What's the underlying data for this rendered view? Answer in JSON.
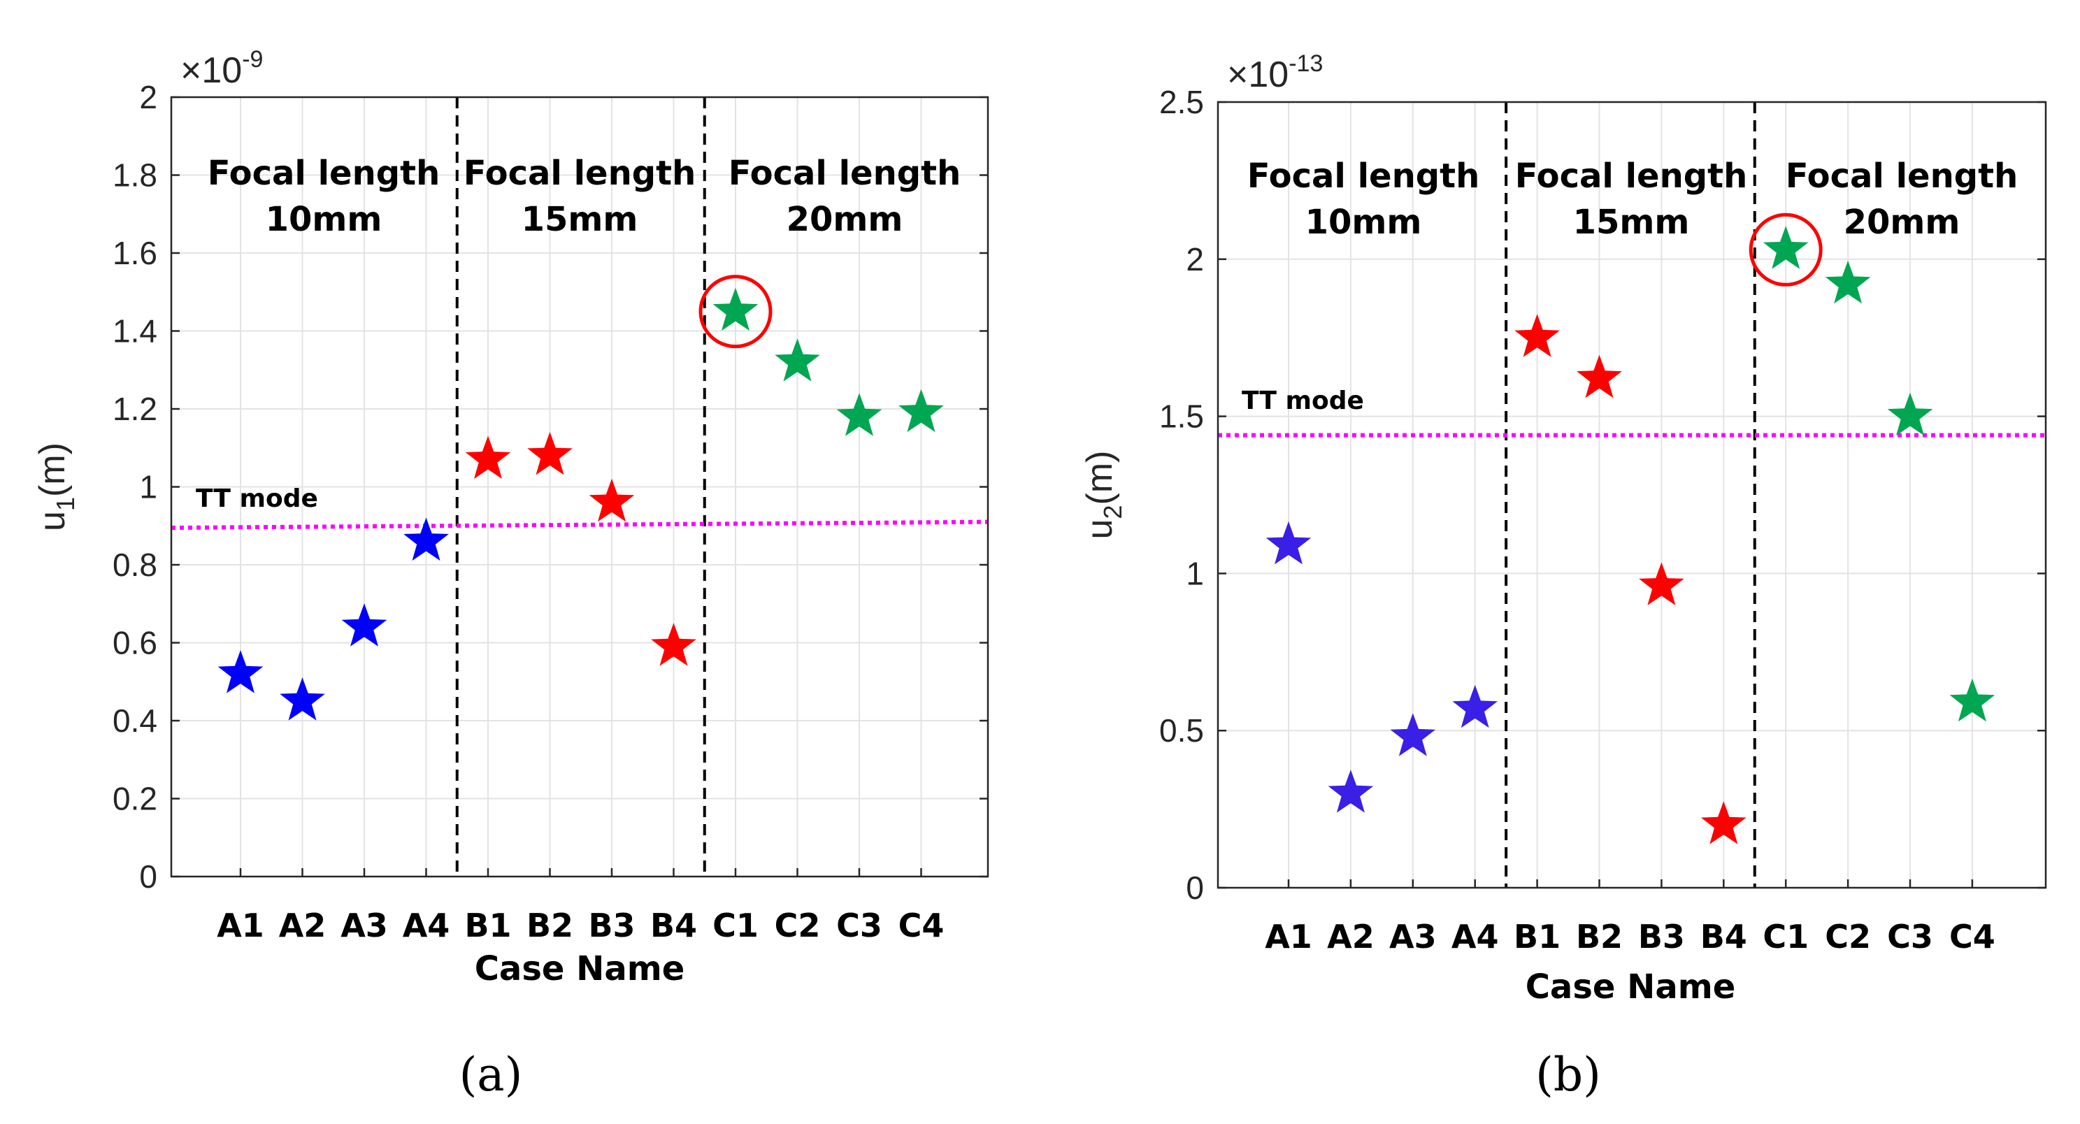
{
  "chart_data": [
    {
      "type": "scatter",
      "panel_label": "(a)",
      "exponent_label": {
        "base": "×10",
        "power": "-9"
      },
      "ylabel": {
        "main": "u",
        "sub": "1",
        "unit": "(m)"
      },
      "xlabel": "Case Name",
      "ylim": [
        0,
        2
      ],
      "yticks": [
        0,
        0.2,
        0.4,
        0.6,
        0.8,
        1,
        1.2,
        1.4,
        1.6,
        1.8,
        2
      ],
      "ytick_labels": [
        "0",
        "0.2",
        "0.4",
        "0.6",
        "0.8",
        "1",
        "1.2",
        "1.4",
        "1.6",
        "1.8",
        "2"
      ],
      "categories": [
        "A1",
        "A2",
        "A3",
        "A4",
        "B1",
        "B2",
        "B3",
        "B4",
        "C1",
        "C2",
        "C3",
        "C4"
      ],
      "series": [
        {
          "name": "Focal length 10mm",
          "color": "#0000ff",
          "categories": [
            "A1",
            "A2",
            "A3",
            "A4"
          ],
          "values": [
            0.52,
            0.45,
            0.64,
            0.86
          ]
        },
        {
          "name": "Focal length 15mm",
          "color": "#ff0000",
          "categories": [
            "B1",
            "B2",
            "B3",
            "B4"
          ],
          "values": [
            1.07,
            1.08,
            0.96,
            0.59
          ]
        },
        {
          "name": "Focal length 20mm",
          "color": "#00a651",
          "categories": [
            "C1",
            "C2",
            "C3",
            "C4"
          ],
          "values": [
            1.45,
            1.32,
            1.18,
            1.19
          ]
        }
      ],
      "groups": [
        {
          "line1": "Focal length",
          "line2": "10mm"
        },
        {
          "line1": "Focal length",
          "line2": "15mm"
        },
        {
          "line1": "Focal length",
          "line2": "20mm"
        }
      ],
      "reference": {
        "label": "TT mode",
        "start": 0.895,
        "end": 0.91,
        "color": "#ff00ff"
      },
      "highlight": "C1"
    },
    {
      "type": "scatter",
      "panel_label": "(b)",
      "exponent_label": {
        "base": "×10",
        "power": "-13"
      },
      "ylabel": {
        "main": "u",
        "sub": "2",
        "unit": "(m)"
      },
      "xlabel": "Case Name",
      "ylim": [
        0,
        2.5
      ],
      "yticks": [
        0,
        0.5,
        1,
        1.5,
        2,
        2.5
      ],
      "ytick_labels": [
        "0",
        "0.5",
        "1",
        "1.5",
        "2",
        "2.5"
      ],
      "categories": [
        "A1",
        "A2",
        "A3",
        "A4",
        "B1",
        "B2",
        "B3",
        "B4",
        "C1",
        "C2",
        "C3",
        "C4"
      ],
      "series": [
        {
          "name": "Focal length 10mm",
          "color": "#3a1fe6",
          "categories": [
            "A1",
            "A2",
            "A3",
            "A4"
          ],
          "values": [
            1.09,
            0.3,
            0.48,
            0.57
          ]
        },
        {
          "name": "Focal length 15mm",
          "color": "#ff0000",
          "categories": [
            "B1",
            "B2",
            "B3",
            "B4"
          ],
          "values": [
            1.75,
            1.62,
            0.96,
            0.2
          ]
        },
        {
          "name": "Focal length 20mm",
          "color": "#00a651",
          "categories": [
            "C1",
            "C2",
            "C3",
            "C4"
          ],
          "values": [
            2.03,
            1.92,
            1.5,
            0.59
          ]
        }
      ],
      "groups": [
        {
          "line1": "Focal length",
          "line2": "10mm"
        },
        {
          "line1": "Focal length",
          "line2": "15mm"
        },
        {
          "line1": "Focal length",
          "line2": "20mm"
        }
      ],
      "reference": {
        "label": "TT mode",
        "start": 1.44,
        "end": 1.44,
        "color": "#ff00ff"
      },
      "highlight": "C1"
    }
  ]
}
